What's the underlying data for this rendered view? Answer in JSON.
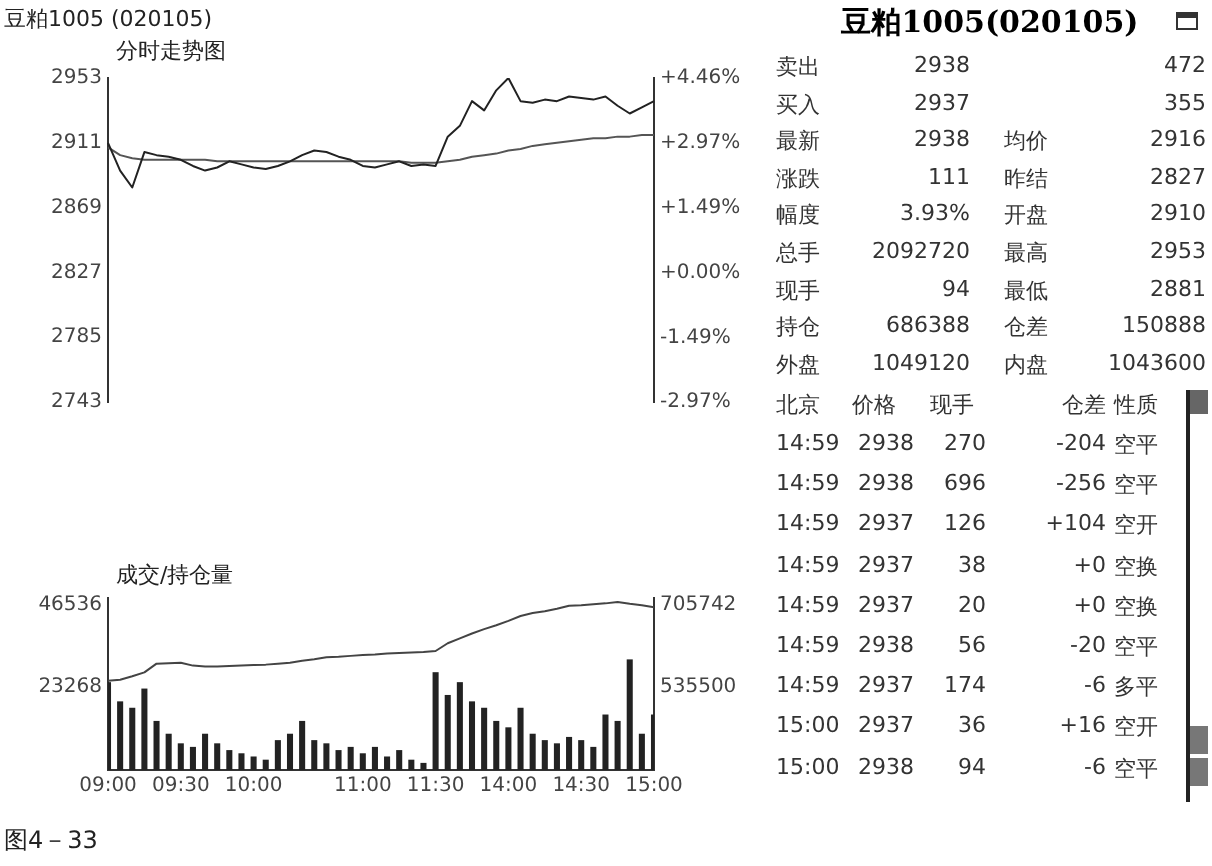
{
  "chart_data": [
    {
      "type": "line",
      "title": "豆粕1005 (020105)",
      "subtitle": "分时走势图",
      "categories": [
        null,
        null,
        null,
        null,
        null,
        null,
        null,
        null,
        null,
        null,
        null,
        null,
        null,
        null,
        null,
        null,
        null,
        null,
        null,
        null,
        null,
        null,
        null,
        null,
        null,
        null,
        null,
        null,
        null,
        null,
        null,
        null,
        null,
        null,
        null,
        null,
        null,
        null,
        null,
        null,
        null,
        null,
        null,
        null,
        null,
        null
      ],
      "series": [
        {
          "color": "#222222",
          "values": [
            2911,
            2893,
            2882,
            2905,
            2903,
            2902,
            2900,
            2896,
            2893,
            2895,
            2899,
            2897,
            2895,
            2894,
            2896,
            2899,
            2903,
            2906,
            2905,
            2902,
            2900,
            2896,
            2895,
            2897,
            2899,
            2896,
            2897,
            2896,
            2915,
            2922,
            2938,
            2932,
            2945,
            2953,
            2938,
            2937,
            2939,
            2938,
            2941,
            2940,
            2939,
            2941,
            2935,
            2930,
            2934,
            2938
          ]
        },
        {
          "color": "#555555",
          "values": [
            2908,
            2903,
            2901,
            2900,
            2900,
            2900,
            2900,
            2900,
            2900,
            2899,
            2899,
            2899,
            2899,
            2899,
            2899,
            2899,
            2899,
            2899,
            2899,
            2899,
            2899,
            2899,
            2899,
            2899,
            2899,
            2898,
            2898,
            2898,
            2899,
            2900,
            2902,
            2903,
            2904,
            2906,
            2907,
            2909,
            2910,
            2911,
            2912,
            2913,
            2914,
            2914,
            2915,
            2915,
            2916,
            2916
          ]
        }
      ],
      "ylim": [
        2743,
        2953
      ],
      "yticks": [
        2743,
        2785,
        2827,
        2869,
        2911,
        2953
      ],
      "y2lim": [
        -2.97,
        4.46
      ],
      "y2ticks": [
        {
          "value": -2.97,
          "label": "-2.97%"
        },
        {
          "value": -1.49,
          "label": "-1.49%"
        },
        {
          "value": 0,
          "label": "+0.00%"
        },
        {
          "value": 1.49,
          "label": "+1.49%"
        },
        {
          "value": 2.97,
          "label": "+2.97%"
        },
        {
          "value": 4.46,
          "label": "+4.46%"
        }
      ],
      "tick_labels": "y"
    },
    {
      "type": "bar",
      "title": "成交/持仓量",
      "annotations": [
        "图4－33"
      ],
      "categories": [
        "09:00",
        null,
        null,
        null,
        null,
        null,
        "09:30",
        null,
        null,
        null,
        null,
        null,
        "10:00",
        null,
        null,
        null,
        null,
        null,
        null,
        null,
        null,
        "11:00",
        null,
        null,
        null,
        null,
        null,
        "11:30",
        null,
        null,
        null,
        null,
        null,
        "14:00",
        null,
        null,
        null,
        null,
        null,
        "14:30",
        null,
        null,
        null,
        null,
        null,
        "15:00"
      ],
      "series": [
        {
          "type": "bar",
          "color": "#222222",
          "values": [
            24700,
            19300,
            17500,
            22900,
            13800,
            10200,
            7500,
            6500,
            10200,
            7500,
            5600,
            4700,
            3800,
            2900,
            8400,
            10200,
            13800,
            8400,
            7500,
            5600,
            6500,
            4700,
            6500,
            3800,
            5600,
            2900,
            2000,
            27500,
            21100,
            24700,
            19300,
            17500,
            13800,
            12000,
            17500,
            10200,
            8400,
            7500,
            9300,
            8400,
            6500,
            15600,
            13800,
            31100,
            10200,
            15600
          ]
        },
        {
          "type": "line",
          "axis": "y2",
          "color": "#444444",
          "values": [
            549000,
            551000,
            558000,
            566000,
            584000,
            585000,
            586000,
            580000,
            578000,
            578000,
            579000,
            580000,
            581000,
            582000,
            584000,
            586000,
            590000,
            593000,
            597000,
            598000,
            600000,
            602000,
            603000,
            605000,
            606000,
            607000,
            608000,
            610000,
            626000,
            636000,
            646000,
            655000,
            663000,
            672000,
            682000,
            688000,
            692000,
            697000,
            703000,
            704000,
            706000,
            708000,
            711000,
            707000,
            704000,
            700000
          ]
        }
      ],
      "ylim": [
        0,
        48360
      ],
      "yticks": [
        23268,
        46536
      ],
      "y2lim": [
        365258,
        719042
      ],
      "y2ticks": [
        535500,
        705742
      ]
    },
    {
      "type": "other",
      "title": "豆粕1005(020105)",
      "annotations": [
        "卖出",
        "2938",
        "472",
        "买入",
        "2937",
        "355",
        "最新",
        "2938",
        "均价",
        "2916",
        "涨跌",
        "111",
        "昨结",
        "2827",
        "幅度",
        "3.93%",
        "开盘",
        "2910",
        "总手",
        "2092720",
        "最高",
        "2953",
        "现手",
        "94",
        "最低",
        "2881",
        "持仓",
        "686388",
        "仓差",
        "150888",
        "外盘",
        "1049120",
        "内盘",
        "1043600",
        "北京",
        "价格",
        "现手",
        "仓差",
        "性质",
        "14:59",
        "2938",
        "270",
        "-204",
        "空平",
        "14:59",
        "2938",
        "696",
        "-256",
        "空平",
        "14:59",
        "2937",
        "126",
        "+104",
        "空开",
        "14:59",
        "2937",
        "38",
        "+0",
        "空换",
        "14:59",
        "2937",
        "20",
        "+0",
        "空换",
        "14:59",
        "2938",
        "56",
        "-20",
        "空平",
        "14:59",
        "2937",
        "174",
        "-6",
        "多平",
        "15:00",
        "2937",
        "36",
        "+16",
        "空开",
        "15:00",
        "2938",
        "94",
        "-6",
        "空平"
      ]
    }
  ]
}
